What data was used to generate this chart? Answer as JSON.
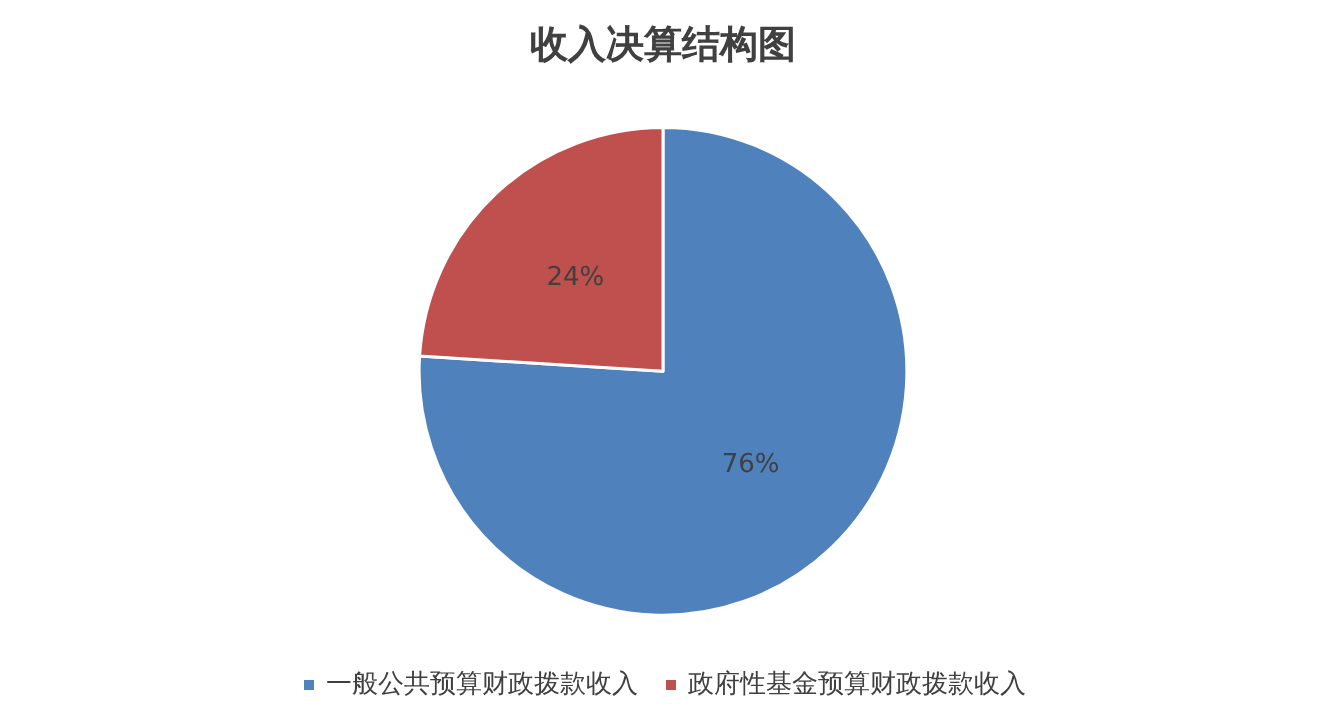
{
  "chart_data": {
    "type": "pie",
    "title": "收入决算结构图",
    "categories": [
      "一般公共预算财政拨款收入",
      "政府性基金预算财政拨款收入"
    ],
    "values": [
      76,
      24
    ],
    "colors": [
      "#4f81bd",
      "#c0504d"
    ],
    "value_labels": [
      "76%",
      "24%"
    ],
    "legend": "bottom"
  }
}
